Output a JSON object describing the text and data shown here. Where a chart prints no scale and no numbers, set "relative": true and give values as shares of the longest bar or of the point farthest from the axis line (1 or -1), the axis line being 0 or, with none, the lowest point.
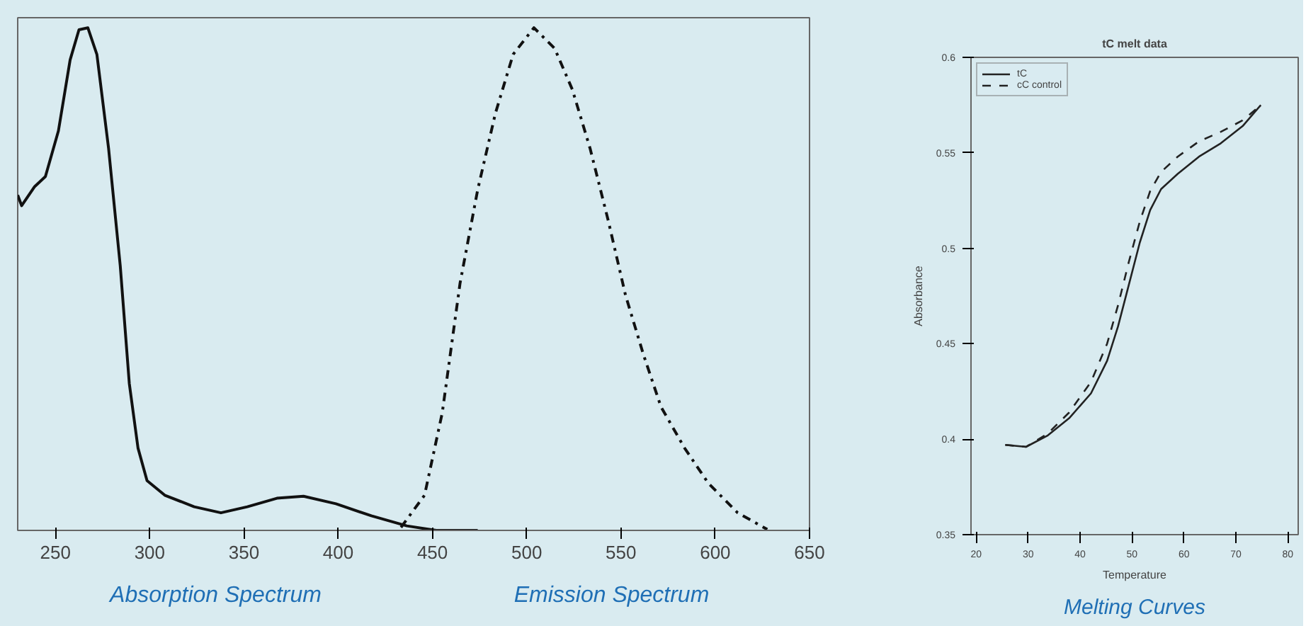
{
  "chart_data": [
    {
      "type": "line",
      "relative": true,
      "xlim": [
        230,
        650
      ],
      "xticks": [
        250,
        300,
        350,
        400,
        450,
        500,
        550,
        600,
        650
      ],
      "tick_labels": "x",
      "annotations": [
        "Absorption Spectrum",
        "Emission Spectrum"
      ],
      "series": [
        {
          "color": "#111111",
          "line_style": "solid",
          "x": [
            230,
            232.1,
            239,
            244.7,
            251.6,
            257.8,
            262.5,
            267.2,
            272,
            278.2,
            284.4,
            289.2,
            293.8,
            298.6,
            308,
            323.6,
            337.8,
            351.8,
            367.5,
            381.6,
            398.8,
            417.6,
            436.4,
            452,
            474
          ],
          "values": [
            0.667,
            0.646,
            0.684,
            0.704,
            0.795,
            0.936,
            0.996,
            1,
            0.947,
            0.76,
            0.526,
            0.292,
            0.164,
            0.099,
            0.07,
            0.047,
            0.035,
            0.047,
            0.064,
            0.068,
            0.053,
            0.029,
            0.009,
            0,
            0
          ]
        },
        {
          "color": "#111111",
          "line_style": "dashdot",
          "x": [
            433.3,
            445.8,
            455.2,
            464.6,
            474,
            483.4,
            492.8,
            503.8,
            514.8,
            524.2,
            533.6,
            543,
            552.4,
            561.8,
            571.2,
            583.7,
            596.3,
            611.9,
            627.6
          ],
          "values": [
            0.006,
            0.07,
            0.234,
            0.491,
            0.678,
            0.83,
            0.947,
            1,
            0.959,
            0.877,
            0.76,
            0.62,
            0.468,
            0.351,
            0.246,
            0.164,
            0.094,
            0.035,
            0.002
          ]
        }
      ]
    },
    {
      "type": "line",
      "title": "tC melt data",
      "xlabel": "Temperature",
      "ylabel": "Absorbance",
      "legend": "top left",
      "xlim": [
        19,
        82
      ],
      "xticks": [
        20,
        30,
        40,
        50,
        60,
        70,
        80
      ],
      "ylim": [
        0.35,
        0.6
      ],
      "yticks": [
        {
          "value": 0.35,
          "label": "0.35"
        },
        {
          "value": 0.4,
          "label": "0.4"
        },
        {
          "value": 0.45,
          "label": "0.45"
        },
        {
          "value": 0.5,
          "label": "0.5"
        },
        {
          "value": 0.55,
          "label": "0.55"
        },
        {
          "value": 0.6,
          "label": "0.6"
        }
      ],
      "annotations": [
        "Melting Curves"
      ],
      "x": [
        25.6,
        29.6,
        33.8,
        37.9,
        42.1,
        45.2,
        47.3,
        49.4,
        51.5,
        53.5,
        55.6,
        58.8,
        62.9,
        67.1,
        71.3,
        74.8
      ],
      "series": [
        {
          "name": "tC",
          "color": "#222222",
          "line_style": "solid",
          "values": [
            0.397,
            0.396,
            0.402,
            0.411,
            0.424,
            0.441,
            0.459,
            0.481,
            0.503,
            0.52,
            0.531,
            0.539,
            0.548,
            0.555,
            0.564,
            0.575
          ]
        },
        {
          "name": "cC control",
          "color": "#222222",
          "line_style": "dashed",
          "values": [
            0.397,
            0.396,
            0.403,
            0.414,
            0.43,
            0.45,
            0.47,
            0.493,
            0.514,
            0.53,
            0.54,
            0.548,
            0.556,
            0.561,
            0.567,
            0.575
          ]
        }
      ]
    }
  ]
}
